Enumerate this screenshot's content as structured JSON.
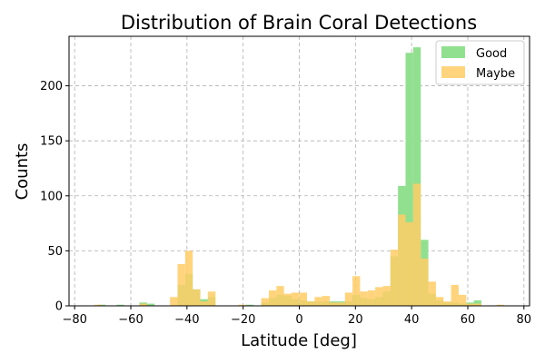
{
  "chart_data": {
    "type": "bar",
    "title": "Distribution of Brain Coral Detections",
    "xlabel": "Latitude [deg]",
    "ylabel": "Counts",
    "xlim": [
      -82,
      82
    ],
    "ylim": [
      0,
      245
    ],
    "xticks": [
      -80,
      -60,
      -40,
      -20,
      0,
      20,
      40,
      60,
      80
    ],
    "yticks": [
      0,
      50,
      100,
      150,
      200
    ],
    "grid": true,
    "legend_position": "top-right",
    "bin_width": 2.7,
    "series": [
      {
        "name": "Good",
        "color": "#90e090",
        "bins": [
          {
            "x": -70.4,
            "y": 1
          },
          {
            "x": -63.7,
            "y": 1
          },
          {
            "x": -55.6,
            "y": 3
          },
          {
            "x": -52.9,
            "y": 2
          },
          {
            "x": -42.0,
            "y": 19
          },
          {
            "x": -39.3,
            "y": 29
          },
          {
            "x": -36.6,
            "y": 15
          },
          {
            "x": -33.9,
            "y": 6
          },
          {
            "x": -31.2,
            "y": 8
          },
          {
            "x": -17.6,
            "y": 1
          },
          {
            "x": -12.2,
            "y": 3
          },
          {
            "x": -9.5,
            "y": 7
          },
          {
            "x": -6.8,
            "y": 10
          },
          {
            "x": -4.1,
            "y": 9
          },
          {
            "x": -1.4,
            "y": 6
          },
          {
            "x": 1.4,
            "y": 5
          },
          {
            "x": 4.1,
            "y": 4
          },
          {
            "x": 6.8,
            "y": 4
          },
          {
            "x": 9.5,
            "y": 4
          },
          {
            "x": 12.2,
            "y": 4
          },
          {
            "x": 14.9,
            "y": 4
          },
          {
            "x": 17.6,
            "y": 4
          },
          {
            "x": 20.3,
            "y": 10
          },
          {
            "x": 23.0,
            "y": 7
          },
          {
            "x": 25.7,
            "y": 6
          },
          {
            "x": 28.4,
            "y": 8
          },
          {
            "x": 31.1,
            "y": 13
          },
          {
            "x": 33.8,
            "y": 45
          },
          {
            "x": 36.5,
            "y": 109
          },
          {
            "x": 39.2,
            "y": 230
          },
          {
            "x": 41.9,
            "y": 235
          },
          {
            "x": 44.6,
            "y": 60
          },
          {
            "x": 47.3,
            "y": 11
          },
          {
            "x": 50.0,
            "y": 5
          },
          {
            "x": 52.7,
            "y": 3
          },
          {
            "x": 55.4,
            "y": 3
          },
          {
            "x": 58.1,
            "y": 2
          },
          {
            "x": 60.8,
            "y": 3
          },
          {
            "x": 63.5,
            "y": 5
          }
        ]
      },
      {
        "name": "Maybe",
        "color": "#ffcc66",
        "bins": [
          {
            "x": -71.7,
            "y": 1
          },
          {
            "x": -55.5,
            "y": 2
          },
          {
            "x": -44.7,
            "y": 8
          },
          {
            "x": -42.0,
            "y": 38
          },
          {
            "x": -39.3,
            "y": 50
          },
          {
            "x": -36.6,
            "y": 15
          },
          {
            "x": -33.9,
            "y": 4
          },
          {
            "x": -31.2,
            "y": 13
          },
          {
            "x": -20.4,
            "y": 1
          },
          {
            "x": -12.2,
            "y": 7
          },
          {
            "x": -9.5,
            "y": 14
          },
          {
            "x": -6.8,
            "y": 18
          },
          {
            "x": -4.1,
            "y": 11
          },
          {
            "x": -1.4,
            "y": 12
          },
          {
            "x": 1.4,
            "y": 12
          },
          {
            "x": 4.1,
            "y": 4
          },
          {
            "x": 6.8,
            "y": 8
          },
          {
            "x": 9.5,
            "y": 9
          },
          {
            "x": 12.2,
            "y": 3
          },
          {
            "x": 14.9,
            "y": 3
          },
          {
            "x": 17.6,
            "y": 12
          },
          {
            "x": 20.3,
            "y": 27
          },
          {
            "x": 23.0,
            "y": 13
          },
          {
            "x": 25.7,
            "y": 14
          },
          {
            "x": 28.4,
            "y": 17
          },
          {
            "x": 31.1,
            "y": 18
          },
          {
            "x": 33.8,
            "y": 51
          },
          {
            "x": 36.5,
            "y": 83
          },
          {
            "x": 39.2,
            "y": 76
          },
          {
            "x": 41.9,
            "y": 111
          },
          {
            "x": 44.6,
            "y": 43
          },
          {
            "x": 47.3,
            "y": 22
          },
          {
            "x": 50.0,
            "y": 8
          },
          {
            "x": 52.7,
            "y": 4
          },
          {
            "x": 55.4,
            "y": 19
          },
          {
            "x": 58.1,
            "y": 10
          },
          {
            "x": 60.8,
            "y": 2
          },
          {
            "x": 63.5,
            "y": 2
          },
          {
            "x": 71.6,
            "y": 1
          }
        ]
      }
    ]
  }
}
